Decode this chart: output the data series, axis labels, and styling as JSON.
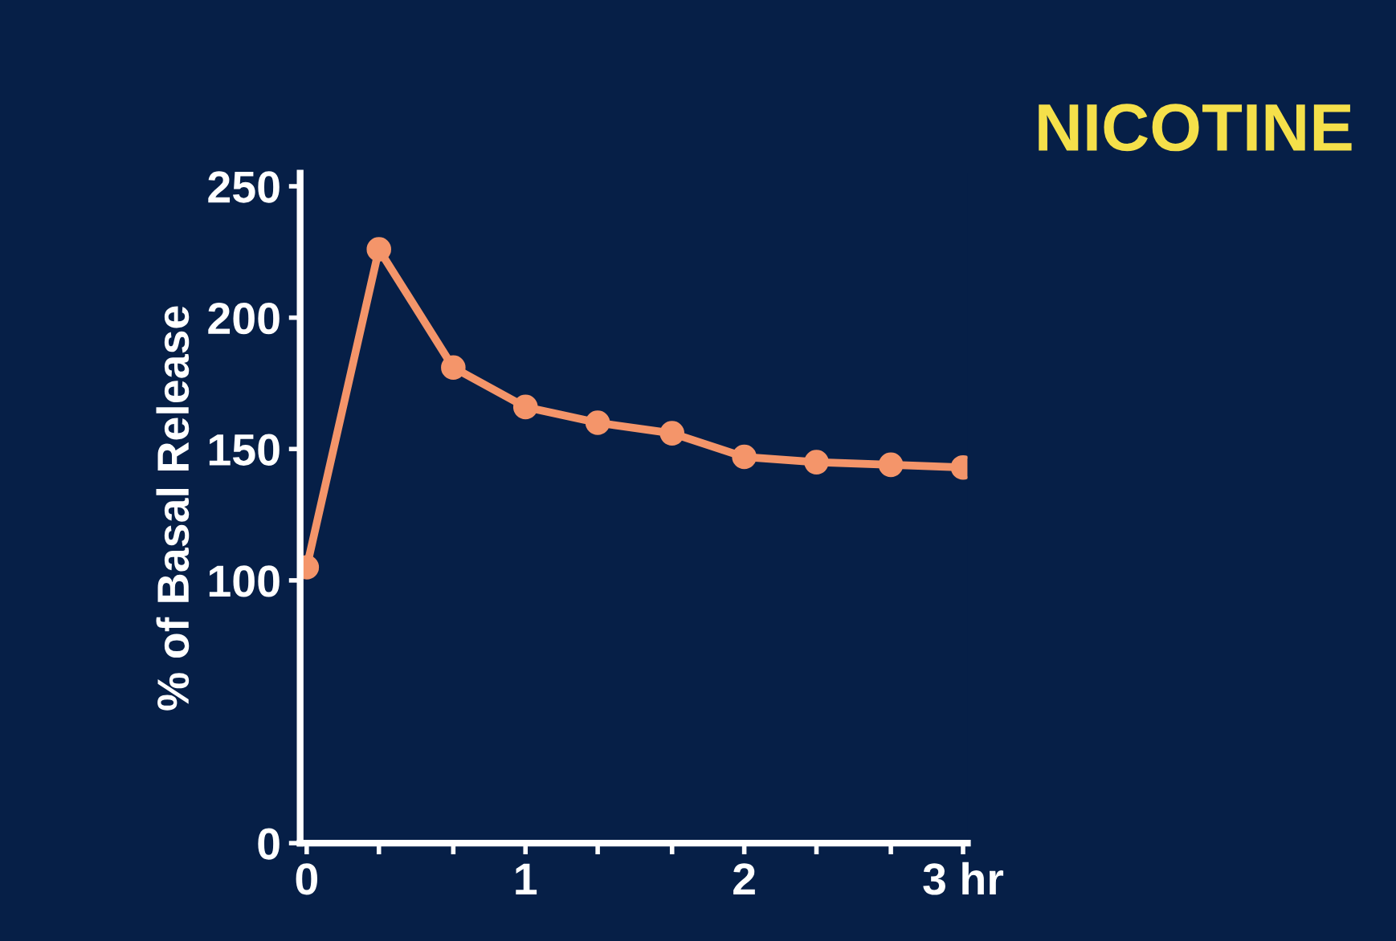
{
  "chart_data": {
    "type": "line",
    "title": "NICOTINE",
    "ylabel": "% of Basal Release",
    "x": [
      0,
      0.33,
      0.67,
      1,
      1.33,
      1.67,
      2,
      2.33,
      2.67,
      3
    ],
    "series": [
      {
        "color": "#f4956a",
        "values": [
          105,
          226,
          181,
          166,
          160,
          156,
          147,
          145,
          144,
          143
        ]
      }
    ],
    "xlim": [
      -0.03,
      3.02
    ],
    "xticks": [
      0,
      {
        "value": 0.33,
        "label": null
      },
      {
        "value": 0.67,
        "label": null
      },
      1,
      {
        "value": 1.33,
        "label": null
      },
      {
        "value": 1.67,
        "label": null
      },
      2,
      {
        "value": 2.33,
        "label": null
      },
      {
        "value": 2.67,
        "label": null
      },
      {
        "value": 3,
        "label": "3 hr"
      }
    ],
    "ylim": [
      0,
      255
    ],
    "yticks": [
      0,
      100,
      150,
      200,
      250
    ],
    "marker": "circle",
    "line_style": "solid",
    "grid": false,
    "legend": false
  }
}
